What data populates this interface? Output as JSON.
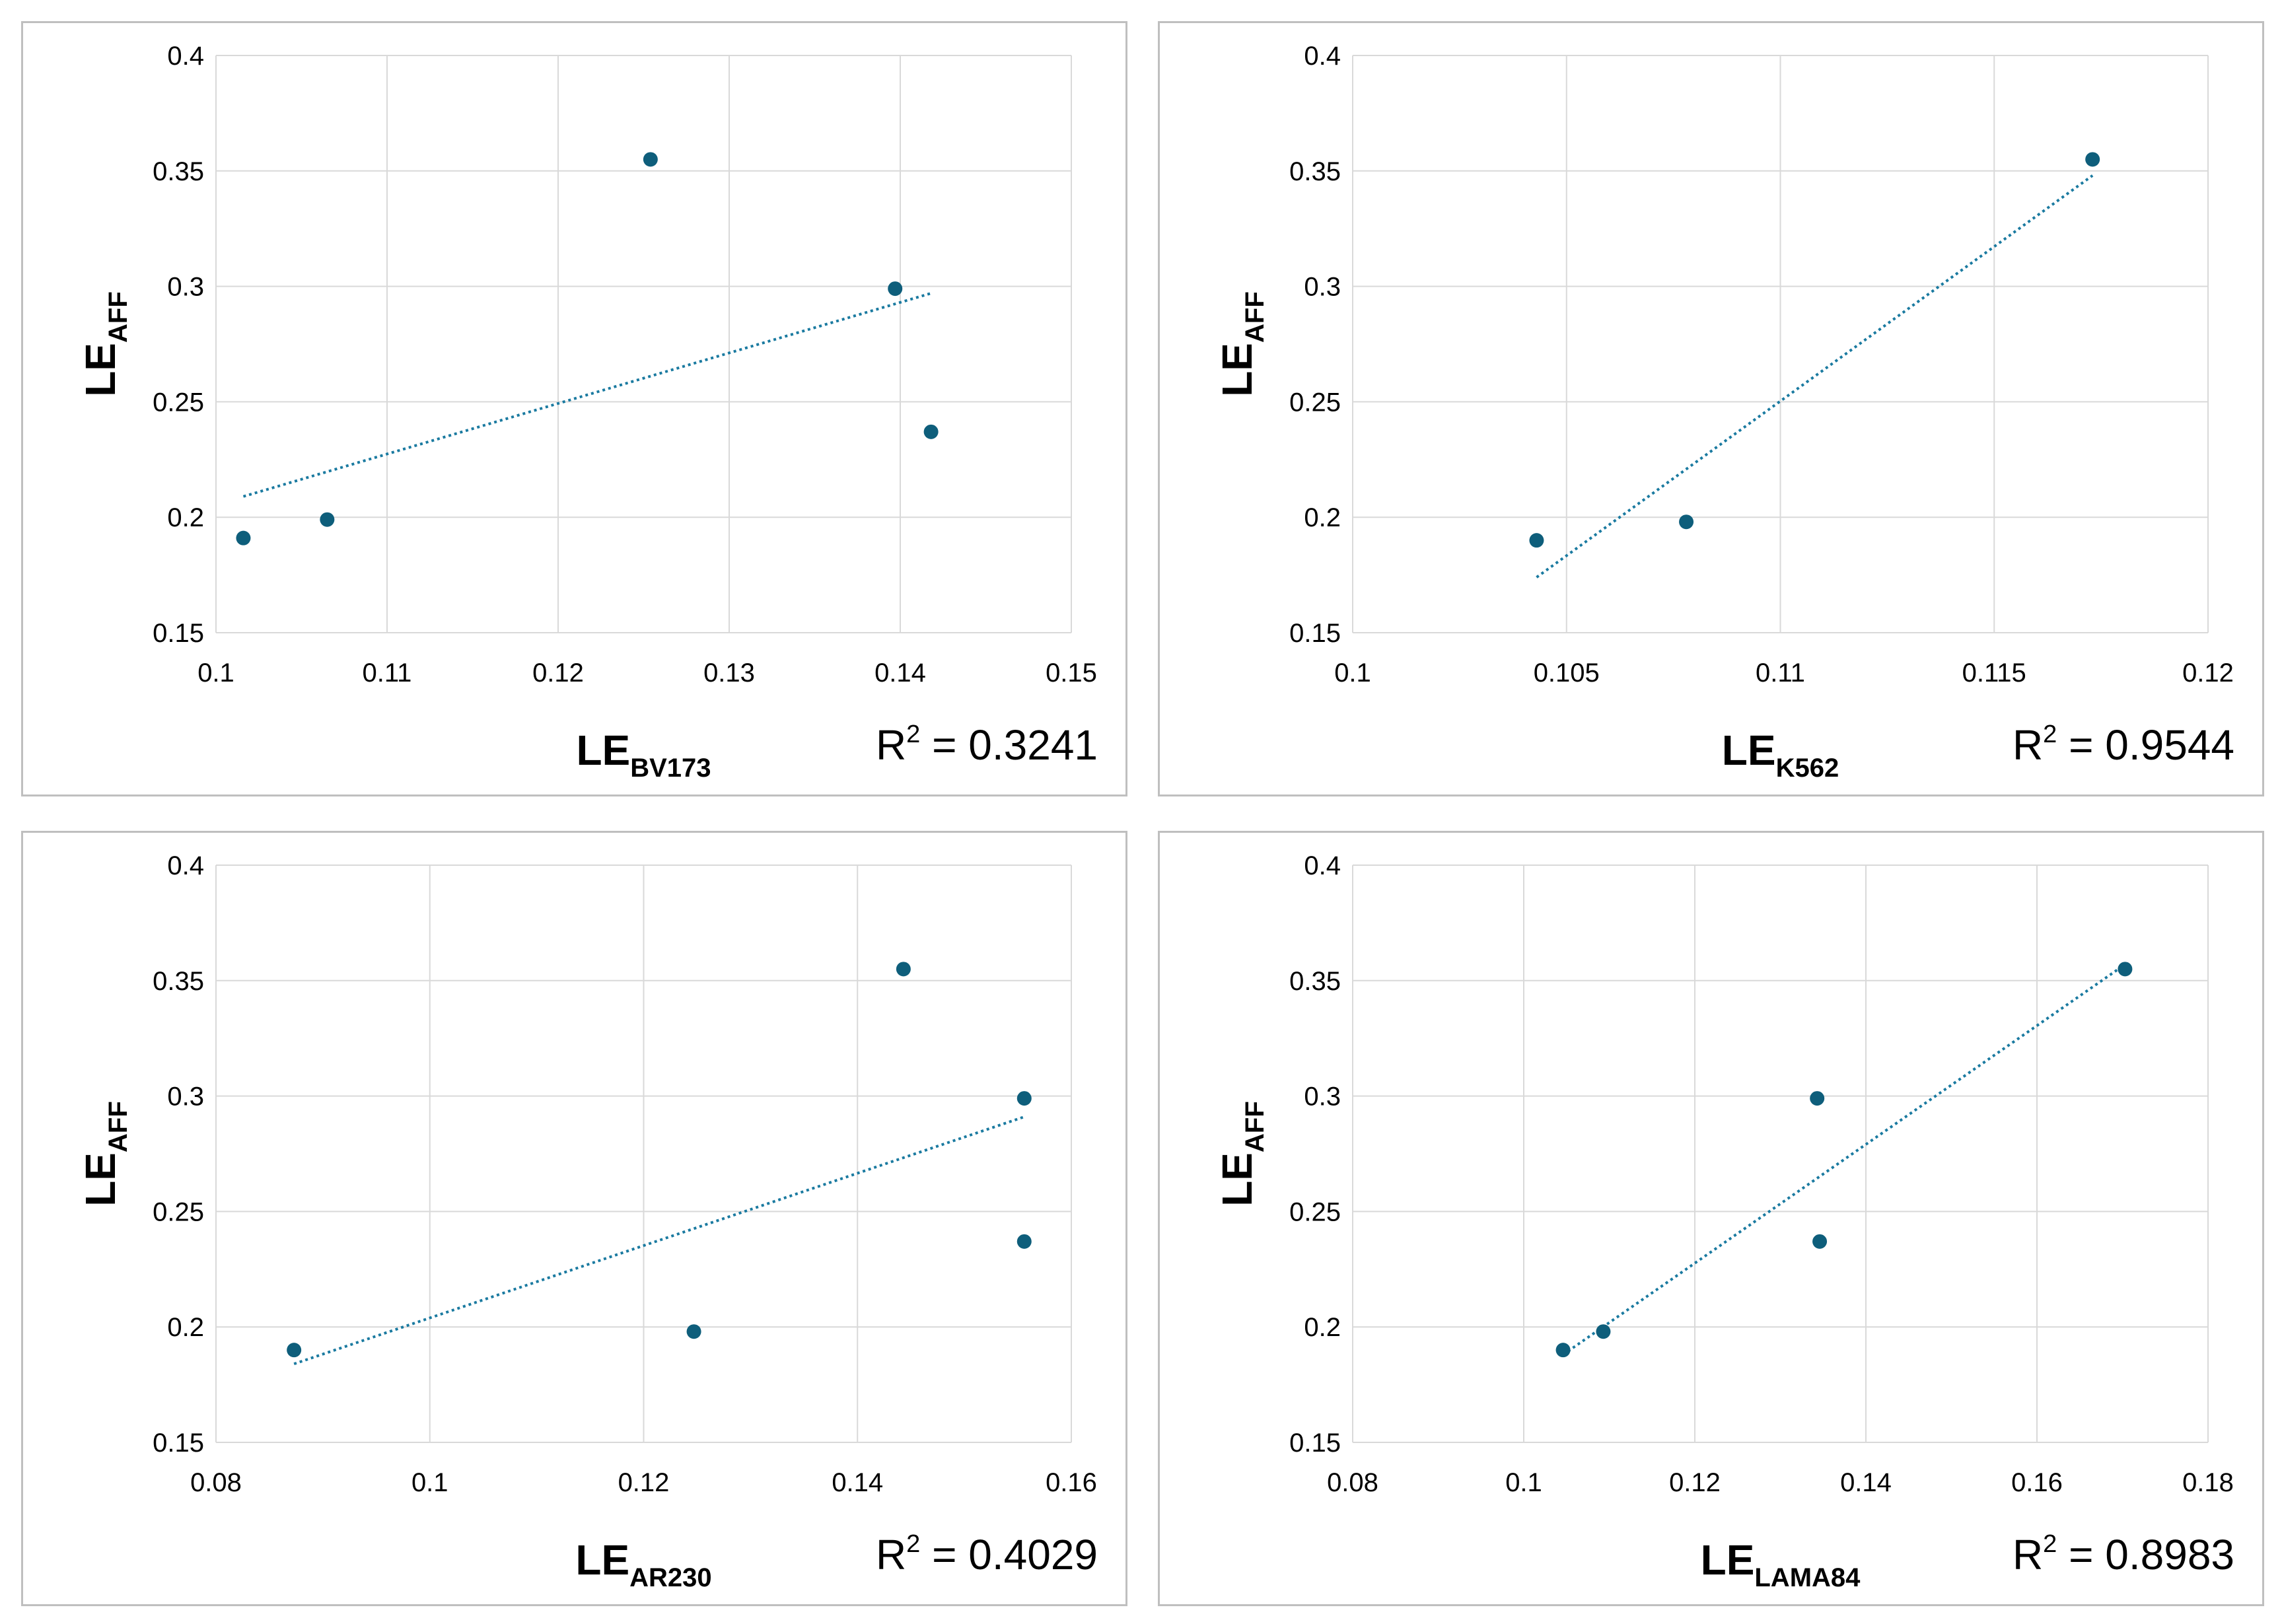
{
  "chart_data": [
    {
      "type": "scatter",
      "title": "",
      "xlabel_main": "LE",
      "xlabel_sub": "BV173",
      "ylabel_main": "LE",
      "ylabel_sub": "AFF",
      "xlim": [
        0.1,
        0.15
      ],
      "ylim": [
        0.15,
        0.4
      ],
      "xticks": [
        "0.1",
        "0.11",
        "0.12",
        "0.13",
        "0.14",
        "0.15"
      ],
      "yticks": [
        "0.4",
        "0.35",
        "0.3",
        "0.25",
        "0.2",
        "0.15"
      ],
      "x": [
        0.1016,
        0.1065,
        0.1254,
        0.1397,
        0.1418
      ],
      "y": [
        0.191,
        0.199,
        0.355,
        0.299,
        0.237
      ],
      "trendline": {
        "x": [
          0.1016,
          0.1418
        ],
        "y": [
          0.209,
          0.297
        ]
      },
      "r2_label": "R",
      "r2_sup": "2",
      "r2_value": " = 0.3241"
    },
    {
      "type": "scatter",
      "title": "",
      "xlabel_main": "LE",
      "xlabel_sub": "K562",
      "ylabel_main": "LE",
      "ylabel_sub": "AFF",
      "xlim": [
        0.1,
        0.12
      ],
      "ylim": [
        0.15,
        0.4
      ],
      "xticks": [
        "0.1",
        "0.105",
        "0.11",
        "0.115",
        "0.12"
      ],
      "yticks": [
        "0.4",
        "0.35",
        "0.3",
        "0.25",
        "0.2",
        "0.15"
      ],
      "x": [
        0.1043,
        0.1078,
        0.1173
      ],
      "y": [
        0.19,
        0.198,
        0.355
      ],
      "trendline": {
        "x": [
          0.1043,
          0.1173
        ],
        "y": [
          0.174,
          0.348
        ]
      },
      "r2_label": "R",
      "r2_sup": "2",
      "r2_value": " = 0.9544"
    },
    {
      "type": "scatter",
      "title": "",
      "xlabel_main": "LE",
      "xlabel_sub": "AR230",
      "ylabel_main": "LE",
      "ylabel_sub": "AFF",
      "xlim": [
        0.08,
        0.16
      ],
      "ylim": [
        0.15,
        0.4
      ],
      "xticks": [
        "0.08",
        "0.1",
        "0.12",
        "0.14",
        "0.16"
      ],
      "yticks": [
        "0.4",
        "0.35",
        "0.3",
        "0.25",
        "0.2",
        "0.15"
      ],
      "x": [
        0.0873,
        0.1247,
        0.1443,
        0.1556,
        0.1556
      ],
      "y": [
        0.19,
        0.198,
        0.355,
        0.299,
        0.237
      ],
      "trendline": {
        "x": [
          0.0873,
          0.1556
        ],
        "y": [
          0.184,
          0.291
        ]
      },
      "r2_label": "R",
      "r2_sup": "2",
      "r2_value": " = 0.4029"
    },
    {
      "type": "scatter",
      "title": "",
      "xlabel_main": "LE",
      "xlabel_sub": "LAMA84",
      "ylabel_main": "LE",
      "ylabel_sub": "AFF",
      "xlim": [
        0.08,
        0.18
      ],
      "ylim": [
        0.15,
        0.4
      ],
      "xticks": [
        "0.08",
        "0.1",
        "0.12",
        "0.14",
        "0.16",
        "0.18"
      ],
      "yticks": [
        "0.4",
        "0.35",
        "0.3",
        "0.25",
        "0.2",
        "0.15"
      ],
      "x": [
        0.1046,
        0.1093,
        0.1343,
        0.1346,
        0.1703
      ],
      "y": [
        0.19,
        0.198,
        0.299,
        0.237,
        0.355
      ],
      "trendline": {
        "x": [
          0.1046,
          0.1703
        ],
        "y": [
          0.188,
          0.357
        ]
      },
      "r2_label": "R",
      "r2_sup": "2",
      "r2_value": " = 0.8983"
    }
  ]
}
